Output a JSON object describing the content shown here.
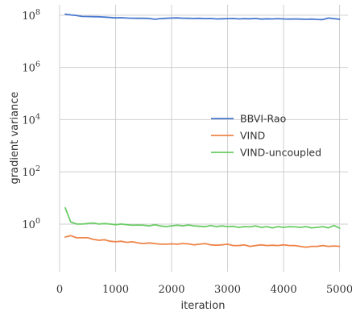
{
  "chart_data": {
    "type": "line",
    "title": "",
    "xlabel": "iteration",
    "ylabel": "gradient variance",
    "yscale": "log",
    "xlim": [
      0,
      5150
    ],
    "ylim": [
      0.015,
      250000000
    ],
    "x_ticks": [
      {
        "value": 0,
        "label": "0"
      },
      {
        "value": 1000,
        "label": "1000"
      },
      {
        "value": 2000,
        "label": "2000"
      },
      {
        "value": 3000,
        "label": "3000"
      },
      {
        "value": 4000,
        "label": "4000"
      },
      {
        "value": 5000,
        "label": "5000"
      }
    ],
    "y_ticks": [
      {
        "value": 1,
        "base": "10",
        "exp": "0"
      },
      {
        "value": 100,
        "base": "10",
        "exp": "2"
      },
      {
        "value": 10000,
        "base": "10",
        "exp": "4"
      },
      {
        "value": 1000000,
        "base": "10",
        "exp": "6"
      },
      {
        "value": 100000000,
        "base": "10",
        "exp": "8"
      }
    ],
    "grid": true,
    "legend_position": "center-right",
    "x": [
      100,
      200,
      300,
      400,
      500,
      600,
      700,
      800,
      900,
      1000,
      1100,
      1200,
      1300,
      1400,
      1500,
      1600,
      1700,
      1800,
      1900,
      2000,
      2100,
      2200,
      2300,
      2400,
      2500,
      2600,
      2700,
      2800,
      2900,
      3000,
      3100,
      3200,
      3300,
      3400,
      3500,
      3600,
      3700,
      3800,
      3900,
      4000,
      4100,
      4200,
      4300,
      4400,
      4500,
      4600,
      4700,
      4800,
      4900,
      5000
    ],
    "series": [
      {
        "name": "BBVI-Rao",
        "color": "#4878cf",
        "values": [
          110000000,
          103000000,
          98000000,
          90000000,
          89000000,
          88000000,
          87000000,
          85000000,
          82000000,
          79000000,
          80000000,
          78000000,
          77000000,
          76000000,
          76000000,
          75000000,
          70000000,
          74000000,
          76000000,
          78000000,
          79000000,
          77000000,
          76000000,
          75000000,
          76000000,
          74000000,
          75000000,
          72000000,
          73000000,
          74000000,
          75000000,
          72000000,
          74000000,
          73000000,
          75000000,
          71000000,
          73000000,
          72000000,
          74000000,
          72000000,
          71000000,
          72000000,
          71000000,
          70000000,
          71000000,
          69000000,
          68000000,
          78000000,
          74000000,
          70000000
        ]
      },
      {
        "name": "VIND",
        "color": "#ee854a",
        "values": [
          0.32,
          0.36,
          0.3,
          0.3,
          0.3,
          0.26,
          0.24,
          0.25,
          0.22,
          0.21,
          0.22,
          0.2,
          0.21,
          0.19,
          0.18,
          0.19,
          0.18,
          0.17,
          0.17,
          0.175,
          0.17,
          0.18,
          0.175,
          0.16,
          0.17,
          0.18,
          0.16,
          0.155,
          0.16,
          0.17,
          0.15,
          0.15,
          0.16,
          0.14,
          0.15,
          0.16,
          0.15,
          0.155,
          0.15,
          0.16,
          0.15,
          0.15,
          0.14,
          0.13,
          0.14,
          0.14,
          0.15,
          0.14,
          0.145,
          0.14
        ]
      },
      {
        "name": "VIND-uncoupled",
        "color": "#6acc65",
        "values": [
          4.2,
          1.2,
          1.0,
          1.0,
          1.05,
          1.1,
          1.0,
          1.05,
          1.0,
          0.95,
          1.0,
          0.95,
          0.9,
          0.92,
          0.9,
          0.85,
          0.95,
          0.85,
          0.8,
          0.85,
          0.9,
          0.85,
          0.92,
          0.85,
          0.82,
          0.8,
          0.88,
          0.8,
          0.85,
          0.8,
          0.82,
          0.75,
          0.8,
          0.78,
          0.85,
          0.75,
          0.8,
          0.72,
          0.8,
          0.75,
          0.8,
          0.78,
          0.75,
          0.8,
          0.72,
          0.75,
          0.8,
          0.72,
          0.88,
          0.7
        ]
      }
    ]
  }
}
